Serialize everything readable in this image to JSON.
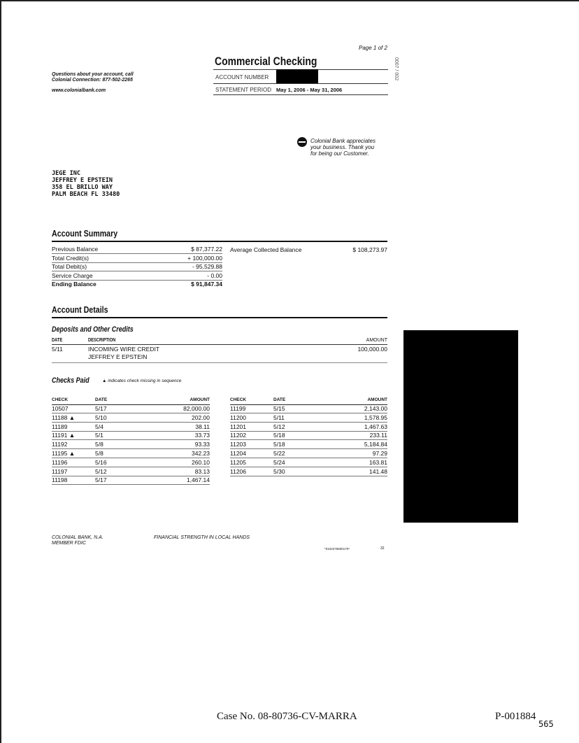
{
  "header": {
    "page": "Page 1 of 2",
    "title": "Commercial Checking",
    "account_number_label": "ACCOUNT NUMBER",
    "statement_period_label": "STATEMENT PERIOD",
    "statement_period": "May 1, 2006 - May 31, 2006",
    "side_code": "0007 / 002",
    "contact_line1": "Questions about your account, call",
    "contact_line2": "Colonial Connection: 877-502-2265",
    "website": "www.colonialbank.com"
  },
  "thanks": [
    "Colonial Bank appreciates",
    "your business.  Thank you",
    "for being our Customer."
  ],
  "address": [
    "JEGE INC",
    "JEFFREY E EPSTEIN",
    "358 EL BRILLO WAY",
    "PALM BEACH FL 33480"
  ],
  "summary": {
    "title": "Account Summary",
    "rows": [
      {
        "label": "Previous Balance",
        "value": "$ 87,377.22"
      },
      {
        "label": "Total Credit(s)",
        "value": "+ 100,000.00"
      },
      {
        "label": "Total Debit(s)",
        "value": "- 95,529.88"
      },
      {
        "label": "Service Charge",
        "value": "- 0.00"
      },
      {
        "label": "Ending Balance",
        "value": "$ 91,847.34"
      }
    ],
    "avg_label": "Average Collected Balance",
    "avg_value": "$ 108,273.97"
  },
  "details": {
    "title": "Account Details",
    "deposits_title": "Deposits and Other Credits",
    "cols": {
      "date": "DATE",
      "description": "DESCRIPTION",
      "amount": "AMOUNT"
    },
    "deposit": {
      "date": "5/11",
      "desc1": "INCOMING WIRE CREDIT",
      "desc2": "JEFFREY E EPSTEIN",
      "amount": "100,000.00"
    },
    "checks_title": "Checks Paid",
    "checks_note": "indicates check missing in sequence",
    "check_cols": {
      "check": "CHECK",
      "date": "DATE",
      "amount": "AMOUNT"
    },
    "checks_left": [
      {
        "check": "10507",
        "date": "5/17",
        "amount": "82,000.00"
      },
      {
        "check": "11188 ▲",
        "date": "5/10",
        "amount": "202.00"
      },
      {
        "check": "11189",
        "date": "5/4",
        "amount": "38.11"
      },
      {
        "check": "11191 ▲",
        "date": "5/1",
        "amount": "33.73"
      },
      {
        "check": "11192",
        "date": "5/8",
        "amount": "93.33"
      },
      {
        "check": "11195 ▲",
        "date": "5/8",
        "amount": "342.23"
      },
      {
        "check": "11196",
        "date": "5/16",
        "amount": "260.10"
      },
      {
        "check": "11197",
        "date": "5/12",
        "amount": "83.13"
      },
      {
        "check": "11198",
        "date": "5/17",
        "amount": "1,467.14"
      }
    ],
    "checks_right": [
      {
        "check": "11199",
        "date": "5/15",
        "amount": "2,143.00"
      },
      {
        "check": "11200",
        "date": "5/11",
        "amount": "1,578.95"
      },
      {
        "check": "11201",
        "date": "5/12",
        "amount": "1,467.63"
      },
      {
        "check": "11202",
        "date": "5/18",
        "amount": "233.11"
      },
      {
        "check": "11203",
        "date": "5/18",
        "amount": "5,184.84"
      },
      {
        "check": "11204",
        "date": "5/22",
        "amount": "97.29"
      },
      {
        "check": "11205",
        "date": "5/24",
        "amount": "163.81"
      },
      {
        "check": "11206",
        "date": "5/30",
        "amount": "141.48"
      }
    ]
  },
  "footer": {
    "bank1": "COLONIAL BANK, N.A.",
    "bank2": "MEMBER FDIC",
    "slogan": "FINANCIAL STRENGTH IN LOCAL HANDS",
    "code": "*0102275600170*",
    "num": "32",
    "case": "Case No. 08-80736-CV-MARRA",
    "bates": "P-001884",
    "bates_sub": "565"
  }
}
